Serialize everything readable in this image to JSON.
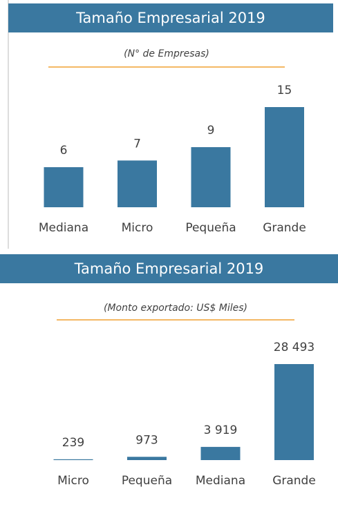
{
  "chart_data": [
    {
      "type": "bar",
      "title": "Tamaño Empresarial 2019",
      "subtitle": "(N° de Empresas)",
      "categories": [
        "Mediana",
        "Micro",
        "Pequeña",
        "Grande"
      ],
      "values": [
        6,
        7,
        9,
        15
      ],
      "color": "#3a78a0"
    },
    {
      "type": "bar",
      "title": "Tamaño Empresarial 2019",
      "subtitle": "(Monto exportado: US$ Miles)",
      "categories": [
        "Micro",
        "Pequeña",
        "Mediana",
        "Grande"
      ],
      "values": [
        239,
        973,
        3919,
        28493
      ],
      "value_labels": [
        "239",
        "973",
        "3 919",
        "28 493"
      ],
      "color": "#3a78a0"
    }
  ]
}
